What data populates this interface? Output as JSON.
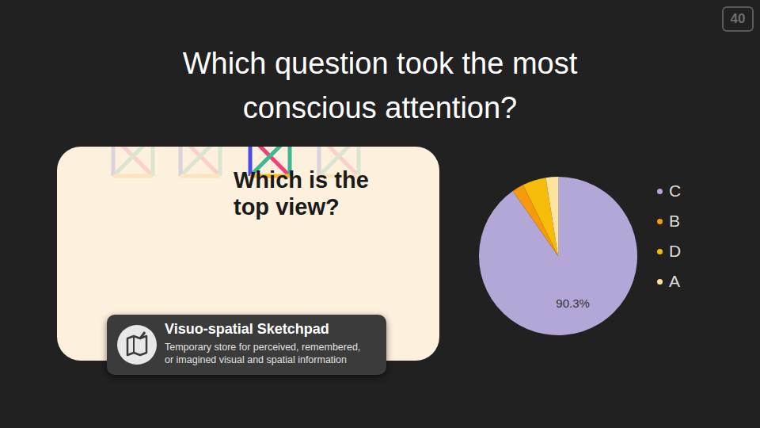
{
  "slide": {
    "page_number": "40",
    "title": [
      "Which question took the most",
      "conscious attention?"
    ]
  },
  "image": {
    "question": [
      "Which is the",
      "top view?"
    ],
    "card": {
      "title": "Visuo-spatial Sketchpad",
      "description": [
        "Temporary store for perceived, remembered,",
        "or imagined visual and spatial information"
      ]
    }
  },
  "chart_data": {
    "type": "pie",
    "categories": [
      "C",
      "B",
      "D",
      "A"
    ],
    "values": [
      90.3,
      2.4,
      4.8,
      2.5
    ],
    "value_labels": [
      "90.3%",
      null,
      null,
      null
    ],
    "colors": [
      "#b3a7d8",
      "#f59a0c",
      "#f5bd0a",
      "#fde39c"
    ],
    "data_labels": true,
    "legend": "right"
  }
}
